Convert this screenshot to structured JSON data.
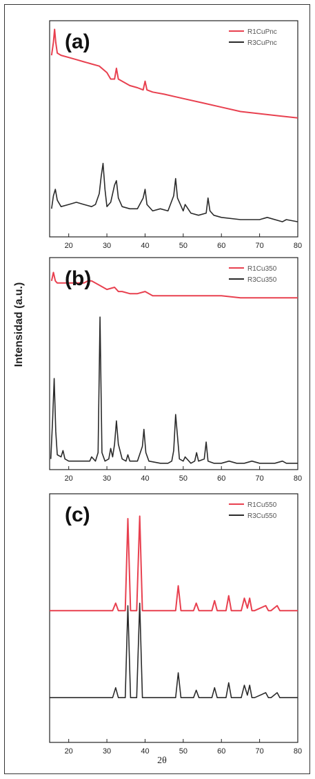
{
  "figure": {
    "ylabel": "Intensidad (a.u.)",
    "xlabel": "2θ"
  },
  "colors": {
    "red": "#e8404f",
    "black": "#2a2a2a"
  },
  "chart_data": [
    {
      "type": "line",
      "panel_label": "(a)",
      "xlim": [
        15,
        80
      ],
      "xticks": [
        20,
        30,
        40,
        50,
        60,
        70,
        80
      ],
      "legend_position": "top-right",
      "series": [
        {
          "name": "R1CuPnc",
          "color": "#e8404f",
          "x": [
            15.5,
            16,
            16.3,
            16.6,
            17,
            18,
            20,
            22,
            24,
            26,
            28,
            30,
            31,
            32,
            32.5,
            33,
            34,
            36,
            38,
            39.5,
            40,
            40.5,
            42,
            45,
            50,
            55,
            60,
            65,
            70,
            75,
            80
          ],
          "y": [
            0.84,
            0.9,
            0.96,
            0.9,
            0.85,
            0.84,
            0.83,
            0.82,
            0.81,
            0.8,
            0.79,
            0.76,
            0.73,
            0.73,
            0.78,
            0.73,
            0.72,
            0.7,
            0.69,
            0.68,
            0.72,
            0.68,
            0.67,
            0.66,
            0.64,
            0.62,
            0.6,
            0.58,
            0.57,
            0.56,
            0.55
          ]
        },
        {
          "name": "R3CuPnc",
          "color": "#2a2a2a",
          "x": [
            15.5,
            16,
            16.5,
            17,
            18,
            20,
            22,
            24,
            26,
            27,
            28,
            28.5,
            29,
            29.5,
            30,
            31,
            32,
            32.5,
            33,
            34,
            36,
            38,
            39.5,
            40,
            40.5,
            42,
            44,
            46,
            47.5,
            48,
            48.5,
            50,
            50.5,
            52,
            54,
            56,
            56.5,
            57,
            58,
            60,
            65,
            70,
            72,
            76,
            77,
            80
          ],
          "y": [
            0.13,
            0.19,
            0.22,
            0.17,
            0.14,
            0.15,
            0.16,
            0.15,
            0.14,
            0.15,
            0.2,
            0.28,
            0.34,
            0.22,
            0.14,
            0.16,
            0.24,
            0.26,
            0.18,
            0.14,
            0.13,
            0.13,
            0.18,
            0.22,
            0.15,
            0.12,
            0.13,
            0.12,
            0.19,
            0.27,
            0.18,
            0.12,
            0.15,
            0.11,
            0.1,
            0.11,
            0.18,
            0.12,
            0.1,
            0.09,
            0.08,
            0.08,
            0.09,
            0.07,
            0.08,
            0.07
          ]
        }
      ]
    },
    {
      "type": "line",
      "panel_label": "(b)",
      "xlim": [
        15,
        80
      ],
      "xticks": [
        20,
        30,
        40,
        50,
        60,
        70,
        80
      ],
      "legend_position": "top-right",
      "series": [
        {
          "name": "R1Cu350",
          "color": "#e8404f",
          "x": [
            15.5,
            16,
            16.5,
            17,
            18,
            20,
            22,
            24,
            25,
            26,
            28,
            30,
            32,
            33,
            34,
            36,
            38,
            40,
            42,
            45,
            50,
            55,
            60,
            65,
            70,
            75,
            80
          ],
          "y": [
            0.89,
            0.93,
            0.89,
            0.88,
            0.88,
            0.88,
            0.88,
            0.88,
            0.89,
            0.89,
            0.87,
            0.85,
            0.86,
            0.84,
            0.84,
            0.83,
            0.83,
            0.84,
            0.82,
            0.82,
            0.82,
            0.82,
            0.82,
            0.81,
            0.81,
            0.81,
            0.81
          ]
        },
        {
          "name": "R3Cu350",
          "color": "#2a2a2a",
          "x": [
            15.3,
            15.8,
            16.2,
            16.6,
            17,
            18,
            18.5,
            19,
            20,
            22,
            24,
            25.5,
            26,
            27,
            27.7,
            28.2,
            28.7,
            29.5,
            30.5,
            31,
            31.5,
            32,
            32.5,
            33,
            34,
            35,
            35.5,
            36,
            38,
            39.3,
            39.7,
            40.2,
            41,
            44,
            46,
            47,
            47.5,
            48,
            49,
            50,
            50.5,
            52,
            53,
            53.5,
            54,
            55.5,
            56,
            56.5,
            58,
            60,
            62,
            64,
            66,
            68,
            70,
            74,
            76,
            77,
            80
          ],
          "y": [
            0.05,
            0.24,
            0.43,
            0.18,
            0.07,
            0.06,
            0.09,
            0.05,
            0.04,
            0.04,
            0.04,
            0.04,
            0.06,
            0.04,
            0.08,
            0.72,
            0.08,
            0.04,
            0.05,
            0.1,
            0.06,
            0.12,
            0.23,
            0.12,
            0.05,
            0.04,
            0.07,
            0.04,
            0.04,
            0.11,
            0.19,
            0.08,
            0.04,
            0.03,
            0.03,
            0.04,
            0.09,
            0.26,
            0.05,
            0.04,
            0.06,
            0.03,
            0.04,
            0.08,
            0.04,
            0.05,
            0.13,
            0.04,
            0.03,
            0.03,
            0.04,
            0.03,
            0.03,
            0.04,
            0.03,
            0.03,
            0.04,
            0.03,
            0.03
          ]
        }
      ]
    },
    {
      "type": "line",
      "panel_label": "(c)",
      "xlim": [
        15,
        80
      ],
      "xticks": [
        20,
        30,
        40,
        50,
        60,
        70,
        80
      ],
      "legend_position": "top-right",
      "series": [
        {
          "name": "R1Cu550",
          "color": "#e8404f",
          "x": [
            15,
            31.5,
            32.3,
            33,
            34.8,
            35.5,
            36.2,
            37.8,
            38.6,
            39.3,
            48,
            48.7,
            49.4,
            52.7,
            53.4,
            54.1,
            57.5,
            58.2,
            58.9,
            61.2,
            61.9,
            62.6,
            65.2,
            66,
            66.8,
            67.4,
            68,
            68.7,
            71.6,
            72.3,
            73,
            74.6,
            75.3,
            76,
            80
          ],
          "y": [
            0.53,
            0.53,
            0.56,
            0.53,
            0.53,
            0.9,
            0.53,
            0.53,
            0.91,
            0.53,
            0.53,
            0.63,
            0.53,
            0.53,
            0.56,
            0.53,
            0.53,
            0.57,
            0.53,
            0.53,
            0.59,
            0.53,
            0.53,
            0.58,
            0.54,
            0.58,
            0.53,
            0.53,
            0.55,
            0.53,
            0.53,
            0.55,
            0.53,
            0.53,
            0.53
          ]
        },
        {
          "name": "R3Cu550",
          "color": "#2a2a2a",
          "x": [
            15,
            31.5,
            32.3,
            33,
            34.8,
            35.5,
            36.2,
            37.8,
            38.6,
            39.3,
            48,
            48.7,
            49.4,
            52.7,
            53.4,
            54.1,
            57.5,
            58.2,
            58.9,
            61.2,
            61.9,
            62.6,
            65.2,
            66,
            66.8,
            67.4,
            68,
            68.7,
            71.6,
            72.3,
            73,
            74.6,
            75.3,
            76,
            80
          ],
          "y": [
            0.18,
            0.18,
            0.22,
            0.18,
            0.18,
            0.55,
            0.18,
            0.18,
            0.56,
            0.18,
            0.18,
            0.28,
            0.18,
            0.18,
            0.21,
            0.18,
            0.18,
            0.22,
            0.18,
            0.18,
            0.24,
            0.18,
            0.18,
            0.23,
            0.19,
            0.23,
            0.18,
            0.18,
            0.2,
            0.18,
            0.18,
            0.2,
            0.18,
            0.18,
            0.18
          ]
        }
      ]
    }
  ]
}
